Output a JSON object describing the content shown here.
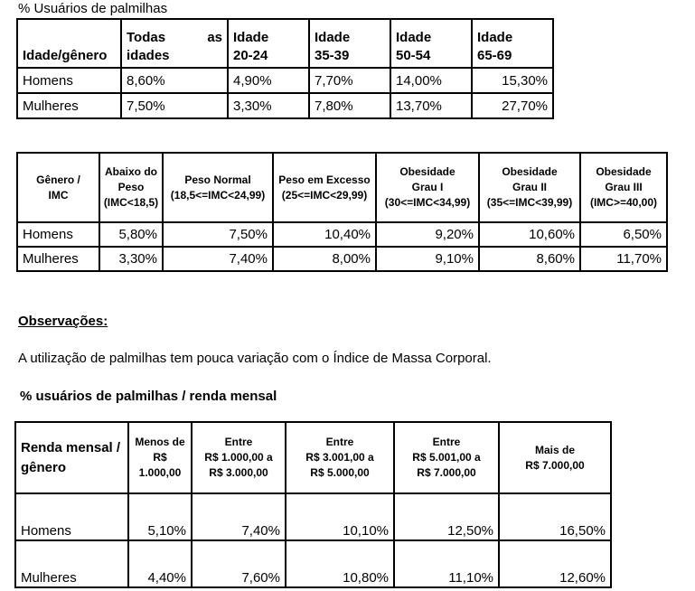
{
  "caption1": "% Usuários de palmilhas",
  "table1": {
    "header_first": "Idade/gênero",
    "header_todas_a": "Todas",
    "header_todas_b": "as",
    "header_todas_c": "idades",
    "header_ages": [
      {
        "l1": "Idade",
        "l2": "20-24"
      },
      {
        "l1": "Idade",
        "l2": "35-39"
      },
      {
        "l1": "Idade",
        "l2": "50-54"
      },
      {
        "l1": "Idade",
        "l2": "65-69"
      }
    ],
    "rows": [
      {
        "label": "Homens",
        "values": [
          "8,60%",
          "4,90%",
          "7,70%",
          "14,00%",
          "15,30%"
        ]
      },
      {
        "label": "Mulheres",
        "values": [
          "7,50%",
          "3,30%",
          "7,80%",
          "13,70%",
          "27,70%"
        ]
      }
    ]
  },
  "table2": {
    "header_first_l1": "Gênero /",
    "header_first_l2": "IMC",
    "headers": [
      {
        "l1": "Abaixo do",
        "l2": "Peso",
        "l3": "(IMC<18,5)"
      },
      {
        "l1": "Peso Normal",
        "l2": "(18,5<=IMC<24,99)",
        "l3": ""
      },
      {
        "l1": "Peso em Excesso",
        "l2": "(25<=IMC<29,99)",
        "l3": ""
      },
      {
        "l1": "Obesidade",
        "l2": "Grau I",
        "l3": "(30<=IMC<34,99)"
      },
      {
        "l1": "Obesidade",
        "l2": "Grau II",
        "l3": "(35<=IMC<39,99)"
      },
      {
        "l1": "Obesidade",
        "l2": "Grau III",
        "l3": "(IMC>=40,00)"
      }
    ],
    "rows": [
      {
        "label": "Homens",
        "values": [
          "5,80%",
          "7,50%",
          "10,40%",
          "9,20%",
          "10,60%",
          "6,50%"
        ]
      },
      {
        "label": "Mulheres",
        "values": [
          "3,30%",
          "7,40%",
          "8,00%",
          "9,10%",
          "8,60%",
          "11,70%"
        ]
      }
    ]
  },
  "observacoes_title": "Observações:",
  "observacoes_text": "A utilização de palmilhas tem pouca variação com o Índice de Massa Corporal.",
  "caption3": "% usuários de palmilhas / renda mensal",
  "table3": {
    "header_first_l1": "Renda mensal /",
    "header_first_l2": "gênero",
    "headers": [
      {
        "l1": "Menos de",
        "l2": "R$",
        "l3": "1.000,00"
      },
      {
        "l1": "Entre",
        "l2": "R$ 1.000,00 a",
        "l3": "R$ 3.000,00"
      },
      {
        "l1": "Entre",
        "l2": "R$ 3.001,00 a",
        "l3": "R$ 5.000,00"
      },
      {
        "l1": "Entre",
        "l2": "R$ 5.001,00 a",
        "l3": "R$ 7.000,00"
      },
      {
        "l1": "Mais de",
        "l2": "R$ 7.000,00",
        "l3": ""
      }
    ],
    "rows": [
      {
        "label": "Homens",
        "values": [
          "5,10%",
          "7,40%",
          "10,10%",
          "12,50%",
          "16,50%"
        ]
      },
      {
        "label": "Mulheres",
        "values": [
          "4,40%",
          "7,60%",
          "10,80%",
          "11,10%",
          "12,60%"
        ]
      }
    ]
  }
}
